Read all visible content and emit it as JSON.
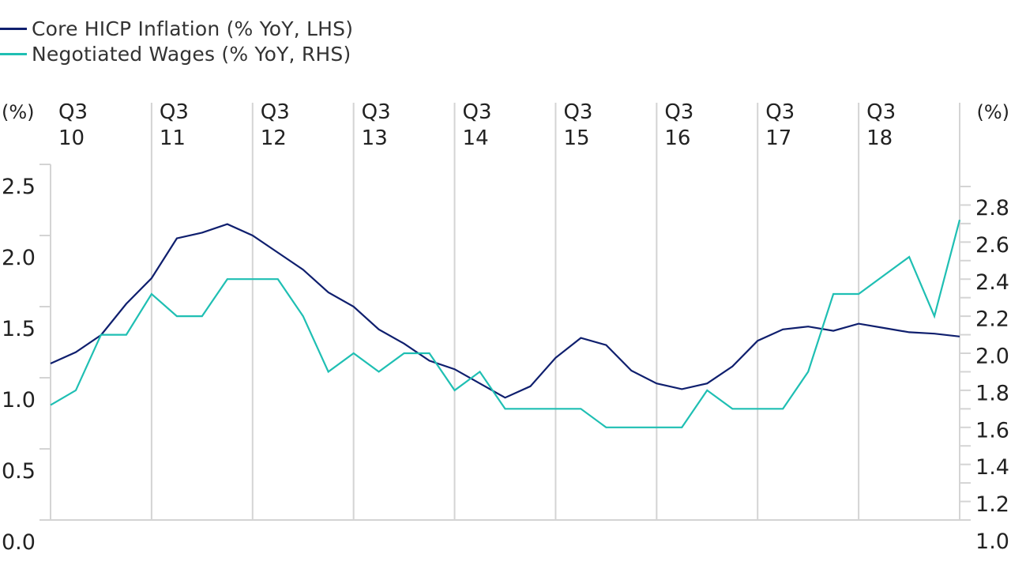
{
  "chart_data": {
    "type": "line",
    "left_axis": {
      "unit_label": "(%)",
      "ticks": [
        "0.0",
        "0.5",
        "1.0",
        "1.5",
        "2.0",
        "2.5"
      ],
      "range": [
        0,
        2.5
      ]
    },
    "right_axis": {
      "unit_label": "(%)",
      "ticks": [
        "1.0",
        "1.2",
        "1.4",
        "1.6",
        "1.8",
        "2.0",
        "2.2",
        "2.4",
        "2.6",
        "2.8"
      ],
      "range": [
        1.0,
        2.8
      ]
    },
    "x_axis": {
      "labels": [
        {
          "q": "Q3",
          "y": "10"
        },
        {
          "q": "Q3",
          "y": "11"
        },
        {
          "q": "Q3",
          "y": "12"
        },
        {
          "q": "Q3",
          "y": "13"
        },
        {
          "q": "Q3",
          "y": "14"
        },
        {
          "q": "Q3",
          "y": "15"
        },
        {
          "q": "Q3",
          "y": "16"
        },
        {
          "q": "Q3",
          "y": "17"
        },
        {
          "q": "Q3",
          "y": "18"
        }
      ],
      "quarters": 37
    },
    "series": [
      {
        "name": "Core HICP Inflation (% YoY, LHS)",
        "axis": "left",
        "color": "#0f1f6e",
        "values": [
          1.1,
          1.18,
          1.3,
          1.52,
          1.7,
          1.98,
          2.02,
          2.08,
          2.0,
          1.88,
          1.76,
          1.6,
          1.5,
          1.34,
          1.24,
          1.12,
          1.06,
          0.96,
          0.86,
          0.94,
          1.14,
          1.28,
          1.23,
          1.05,
          0.96,
          0.92,
          0.96,
          1.08,
          1.26,
          1.34,
          1.36,
          1.33,
          1.38,
          1.35,
          1.32,
          1.31,
          1.29
        ]
      },
      {
        "name": "Negotiated Wages (% YoY, RHS)",
        "axis": "right",
        "color": "#1fbfb3",
        "values": [
          1.62,
          1.7,
          2.0,
          2.0,
          2.22,
          2.1,
          2.1,
          2.3,
          2.3,
          2.3,
          2.1,
          1.8,
          1.9,
          1.8,
          1.9,
          1.9,
          1.7,
          1.8,
          1.6,
          1.6,
          1.6,
          1.6,
          1.5,
          1.5,
          1.5,
          1.5,
          1.7,
          1.6,
          1.6,
          1.6,
          1.8,
          2.22,
          2.22,
          2.32,
          2.42,
          2.1,
          2.62
        ]
      }
    ]
  }
}
